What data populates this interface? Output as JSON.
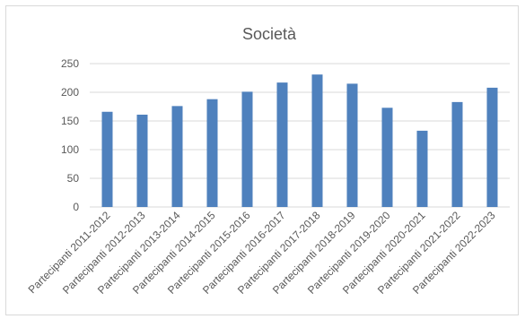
{
  "chart_data": {
    "type": "bar",
    "title": "Società",
    "xlabel": "",
    "ylabel": "",
    "ylim": [
      0,
      250
    ],
    "yticks": [
      0,
      50,
      100,
      150,
      200,
      250
    ],
    "grid": true,
    "legend": "none",
    "categories": [
      "Partecipanti 2011-2012",
      "Partecipanti 2012-2013",
      "Partecipanti 2013-2014",
      "Partecipanti 2014-2015",
      "Partecipanti 2015-2016",
      "Partecipanti 2016-2017",
      "Partecipanti 2017-2018",
      "Partecipanti 2018-2019",
      "Partecipanti 2019-2020",
      "Partecipanti 2020-2021",
      "Partecipanti 2021-2022",
      "Partecipanti 2022-2023"
    ],
    "series": [
      {
        "values": [
          166,
          161,
          176,
          188,
          201,
          217,
          231,
          215,
          173,
          133,
          183,
          208
        ],
        "color": "#4f81bd"
      }
    ]
  }
}
